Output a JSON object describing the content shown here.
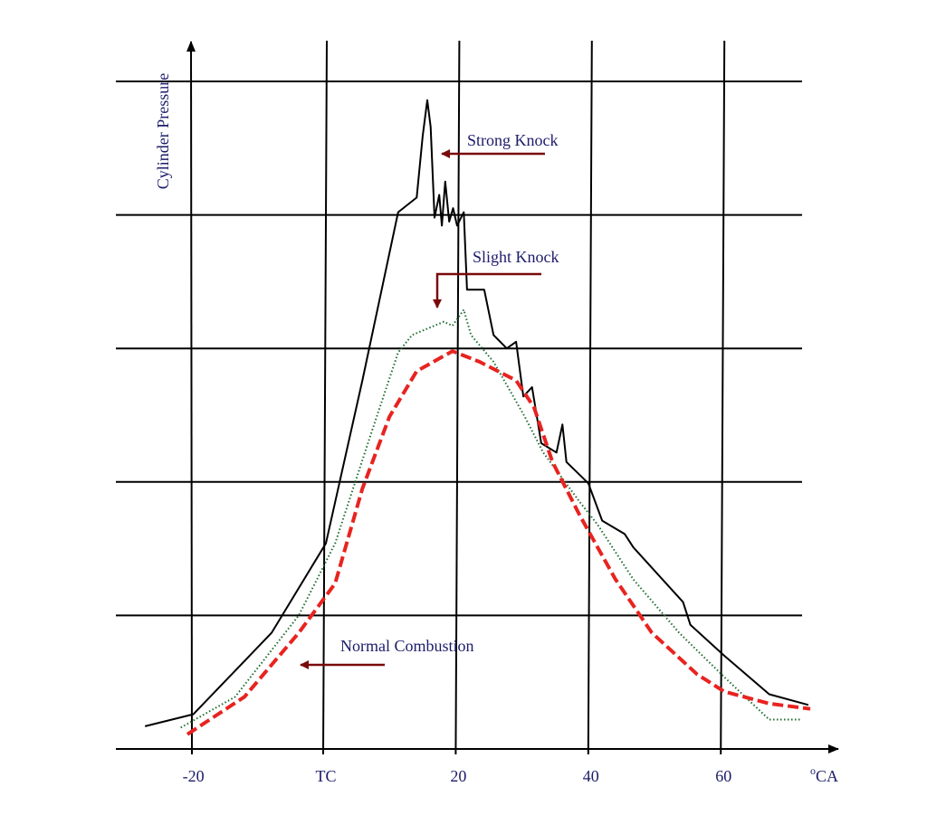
{
  "chart_data": {
    "type": "line",
    "ylabel": "Cylinder Pressure",
    "xlabel": "oCA",
    "xlabel_parts": {
      "superscript": "o",
      "text": "CA"
    },
    "x_ticks": [
      {
        "value": -20,
        "label": "-20"
      },
      {
        "value": 0,
        "label": "TC"
      },
      {
        "value": 20,
        "label": "20"
      },
      {
        "value": 40,
        "label": "40"
      },
      {
        "value": 60,
        "label": "60"
      }
    ],
    "xlim": [
      -32,
      77
    ],
    "ylim": [
      0,
      5.3
    ],
    "grid": true,
    "y_gridlines": [
      1,
      2,
      3,
      4,
      5
    ],
    "series": [
      {
        "name": "Strong Knock",
        "color": "#000000",
        "style": "solid",
        "x": [
          -27.3,
          -20,
          -8.2,
          0,
          5.5,
          10.9,
          13.7,
          14.6,
          15.3,
          15.8,
          16.4,
          17.1,
          17.5,
          18,
          18.6,
          19.2,
          19.8,
          20.8,
          21.3,
          23.9,
          25.3,
          27.3,
          28.7,
          29.8,
          31.1,
          32.5,
          34.8,
          35.7,
          36.3,
          39.6,
          41.7,
          45.1,
          46.4,
          53.9,
          55,
          60.1,
          66.9,
          72.8
        ],
        "y": [
          0.17,
          0.26,
          0.87,
          1.54,
          2.76,
          4.02,
          4.13,
          4.59,
          4.86,
          4.66,
          3.98,
          4.15,
          3.92,
          4.25,
          3.95,
          4.05,
          3.92,
          4.02,
          3.44,
          3.44,
          3.1,
          3.0,
          3.05,
          2.64,
          2.71,
          2.29,
          2.22,
          2.43,
          2.15,
          1.99,
          1.71,
          1.61,
          1.51,
          1.1,
          0.93,
          0.7,
          0.41,
          0.33
        ]
      },
      {
        "name": "Slight Knock",
        "color": "#1f6b2f",
        "style": "dotted",
        "x": [
          -21.9,
          -13.7,
          -4.1,
          1.4,
          6.8,
          10.9,
          13,
          17.8,
          19.1,
          20.8,
          21.9,
          25.3,
          30,
          32.8,
          38.3,
          41,
          46.4,
          53.3,
          60.1,
          66.9,
          71.7
        ],
        "y": [
          0.16,
          0.39,
          1.0,
          1.54,
          2.36,
          2.97,
          3.1,
          3.2,
          3.17,
          3.29,
          3.1,
          2.9,
          2.49,
          2.22,
          1.85,
          1.68,
          1.27,
          0.87,
          0.54,
          0.22,
          0.22
        ]
      },
      {
        "name": "Normal Combustion",
        "color": "#e8231f",
        "style": "dashed",
        "x": [
          -20.9,
          -12.3,
          -4.1,
          1.4,
          5.5,
          9.6,
          13.7,
          19.1,
          23.2,
          28.7,
          31.4,
          34.2,
          38.3,
          43.7,
          49.2,
          56,
          60.1,
          66.9,
          73.1
        ],
        "y": [
          0.11,
          0.39,
          0.87,
          1.24,
          1.95,
          2.49,
          2.83,
          2.98,
          2.9,
          2.76,
          2.56,
          2.15,
          1.75,
          1.27,
          0.87,
          0.56,
          0.43,
          0.34,
          0.3
        ]
      }
    ],
    "annotations": [
      {
        "text": "Strong Knock",
        "arrow_color": "#7a0a0a"
      },
      {
        "text": "Slight Knock",
        "arrow_color": "#7a0a0a"
      },
      {
        "text": "Normal Combustion",
        "arrow_color": "#7a0a0a"
      }
    ]
  }
}
